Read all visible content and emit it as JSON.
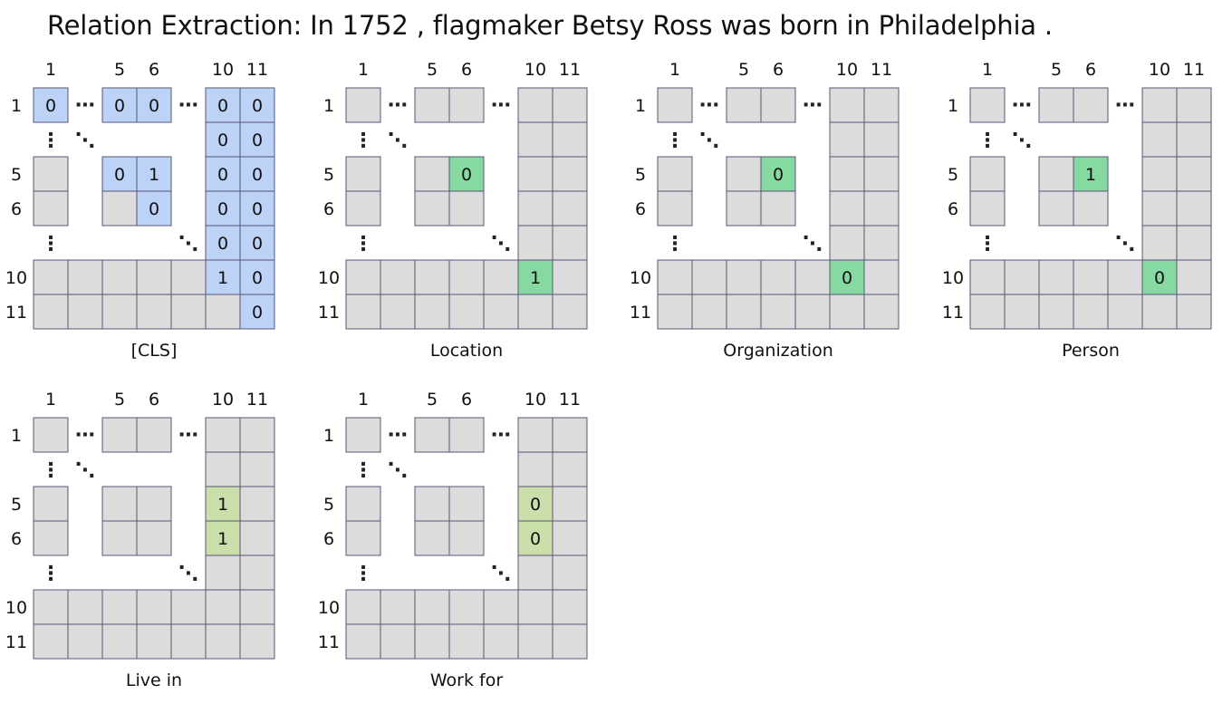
{
  "title": "Relation Extraction: In 1752 , flagmaker Betsy Ross was born in Philadelphia .",
  "col_labels": [
    "1",
    "5",
    "6",
    "10",
    "11"
  ],
  "row_labels": [
    "1",
    "5",
    "6",
    "10",
    "11"
  ],
  "ellipsis_h": "⋯",
  "ellipsis_v": "⋮",
  "ellipsis_d": "⋱",
  "colors": {
    "cell_fill": "#dcdcdc",
    "cell_stroke": "#5a5577",
    "cls_fill": "#bcd3f7",
    "entity_fill": "#86d9a1",
    "relation_fill": "#cadfa9"
  },
  "panels": [
    {
      "label": "[CLS]",
      "highlight": "cls",
      "cells": [
        {
          "r": 0,
          "c": 0,
          "v": "0"
        },
        {
          "r": 0,
          "c": 2,
          "v": "0"
        },
        {
          "r": 0,
          "c": 3,
          "v": "0"
        },
        {
          "r": 0,
          "c": 5,
          "v": "0"
        },
        {
          "r": 0,
          "c": 6,
          "v": "0"
        },
        {
          "r": 1,
          "c": 5,
          "v": "0"
        },
        {
          "r": 1,
          "c": 6,
          "v": "0"
        },
        {
          "r": 2,
          "c": 2,
          "v": "0"
        },
        {
          "r": 2,
          "c": 3,
          "v": "1"
        },
        {
          "r": 2,
          "c": 5,
          "v": "0"
        },
        {
          "r": 2,
          "c": 6,
          "v": "0"
        },
        {
          "r": 3,
          "c": 3,
          "v": "0"
        },
        {
          "r": 3,
          "c": 5,
          "v": "0"
        },
        {
          "r": 3,
          "c": 6,
          "v": "0"
        },
        {
          "r": 4,
          "c": 5,
          "v": "0"
        },
        {
          "r": 4,
          "c": 6,
          "v": "0"
        },
        {
          "r": 5,
          "c": 5,
          "v": "1"
        },
        {
          "r": 5,
          "c": 6,
          "v": "0"
        },
        {
          "r": 6,
          "c": 6,
          "v": "0"
        }
      ]
    },
    {
      "label": "Location",
      "highlight": "entity",
      "cells": [
        {
          "r": 2,
          "c": 3,
          "v": "0"
        },
        {
          "r": 5,
          "c": 5,
          "v": "1"
        }
      ]
    },
    {
      "label": "Organization",
      "highlight": "entity",
      "cells": [
        {
          "r": 2,
          "c": 3,
          "v": "0"
        },
        {
          "r": 5,
          "c": 5,
          "v": "0"
        }
      ]
    },
    {
      "label": "Person",
      "highlight": "entity",
      "cells": [
        {
          "r": 2,
          "c": 3,
          "v": "1"
        },
        {
          "r": 5,
          "c": 5,
          "v": "0"
        }
      ]
    },
    {
      "label": "Live in",
      "highlight": "relation",
      "cells": [
        {
          "r": 2,
          "c": 5,
          "v": "1"
        },
        {
          "r": 3,
          "c": 5,
          "v": "1"
        }
      ]
    },
    {
      "label": "Work for",
      "highlight": "relation",
      "cells": [
        {
          "r": 2,
          "c": 5,
          "v": "0"
        },
        {
          "r": 3,
          "c": 5,
          "v": "0"
        }
      ]
    }
  ]
}
